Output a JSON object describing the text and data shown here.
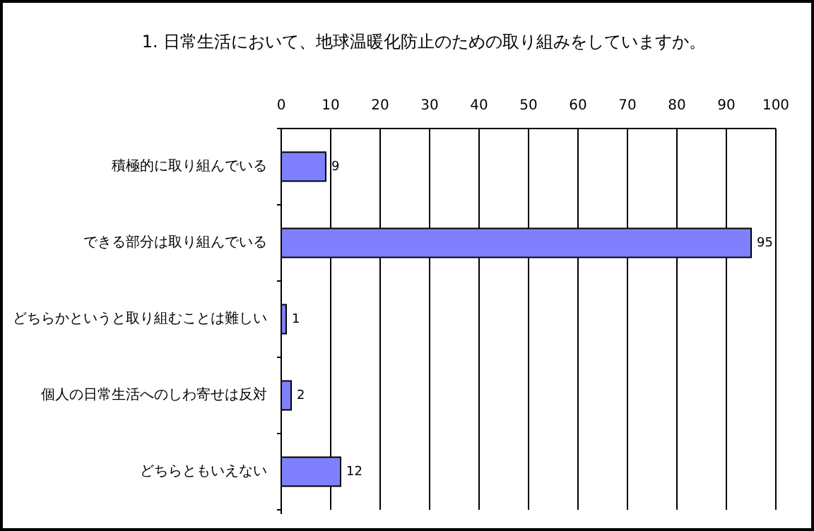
{
  "chart_data": {
    "type": "bar",
    "orientation": "horizontal",
    "title": "1. 日常生活において、地球温暖化防止のための取り組みをしていますか。",
    "categories": [
      "積極的に取り組んでいる",
      "できる部分は取り組んでいる",
      "どちらかというと取り組むことは難しい",
      "個人の日常生活へのしわ寄せは反対",
      "どちらともいえない"
    ],
    "values": [
      9,
      95,
      1,
      2,
      12
    ],
    "color": "#8080ff",
    "xlim": [
      0,
      100
    ],
    "xticks": [
      0,
      10,
      20,
      30,
      40,
      50,
      60,
      70,
      80,
      90,
      100
    ],
    "grid": "x",
    "data_labels": true
  }
}
